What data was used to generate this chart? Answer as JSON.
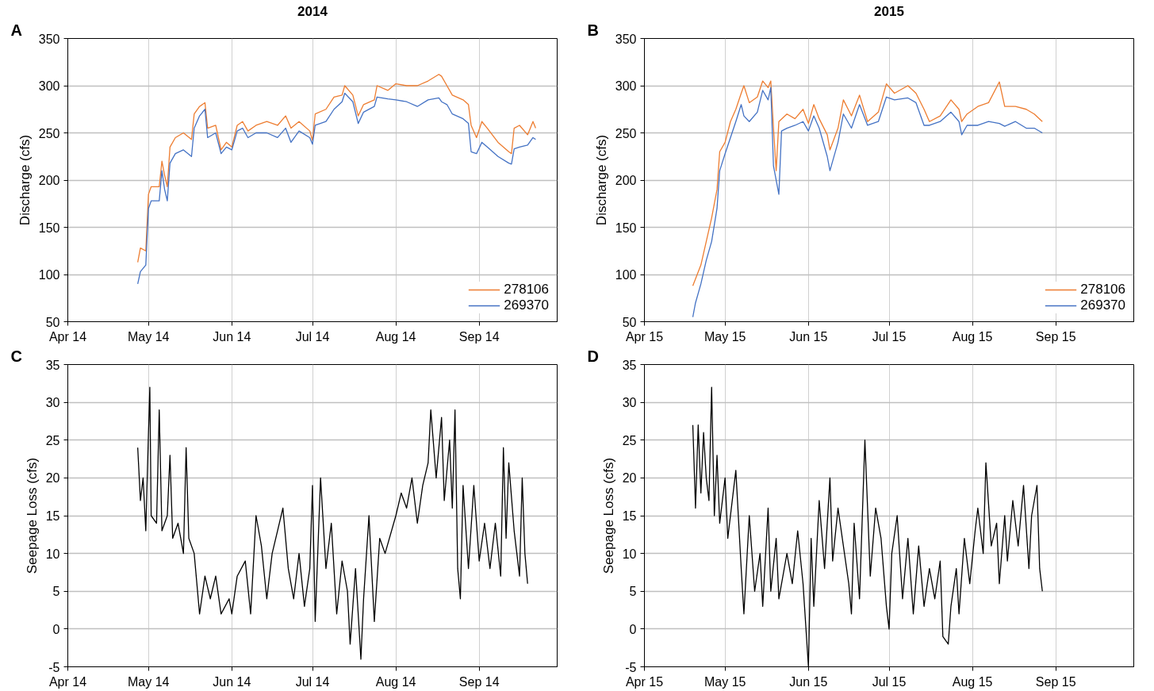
{
  "chart_data": [
    {
      "type": "line",
      "title": "2014",
      "ylabel": "Discharge (cfs)",
      "annotations": [
        "A"
      ],
      "xlim": [
        "2014-04-01",
        "2014-09-30"
      ],
      "xticks": [
        {
          "value": "2014-04-01",
          "label": "Apr 14"
        },
        {
          "value": "2014-05-01",
          "label": "May 14"
        },
        {
          "value": "2014-06-01",
          "label": "Jun 14"
        },
        {
          "value": "2014-07-01",
          "label": "Jul 14"
        },
        {
          "value": "2014-08-01",
          "label": "Aug 14"
        },
        {
          "value": "2014-09-01",
          "label": "Sep 14"
        }
      ],
      "ylim": [
        50,
        350
      ],
      "yticks": [
        50,
        100,
        150,
        200,
        250,
        300,
        350
      ],
      "grid": true,
      "legend": "bottom right",
      "series": [
        {
          "name": "278106",
          "color": "#ed7d31",
          "x": [
            "2014-04-27",
            "2014-04-28",
            "2014-04-30",
            "2014-05-01",
            "2014-05-02",
            "2014-05-05",
            "2014-05-06",
            "2014-05-07",
            "2014-05-08",
            "2014-05-09",
            "2014-05-11",
            "2014-05-14",
            "2014-05-17",
            "2014-05-18",
            "2014-05-20",
            "2014-05-22",
            "2014-05-23",
            "2014-05-26",
            "2014-05-28",
            "2014-05-30",
            "2014-06-01",
            "2014-06-03",
            "2014-06-05",
            "2014-06-07",
            "2014-06-10",
            "2014-06-14",
            "2014-06-18",
            "2014-06-21",
            "2014-06-23",
            "2014-06-26",
            "2014-06-30",
            "2014-07-01",
            "2014-07-02",
            "2014-07-06",
            "2014-07-09",
            "2014-07-12",
            "2014-07-13",
            "2014-07-16",
            "2014-07-18",
            "2014-07-20",
            "2014-07-24",
            "2014-07-25",
            "2014-07-29",
            "2014-08-01",
            "2014-08-05",
            "2014-08-09",
            "2014-08-13",
            "2014-08-17",
            "2014-08-18",
            "2014-08-20",
            "2014-08-22",
            "2014-08-26",
            "2014-08-28",
            "2014-08-29",
            "2014-08-31",
            "2014-09-02",
            "2014-09-04",
            "2014-09-08",
            "2014-09-12",
            "2014-09-13",
            "2014-09-14",
            "2014-09-16",
            "2014-09-19",
            "2014-09-21",
            "2014-09-22"
          ],
          "values": [
            113,
            128,
            125,
            185,
            193,
            193,
            220,
            205,
            193,
            235,
            245,
            250,
            243,
            270,
            278,
            282,
            255,
            258,
            232,
            240,
            235,
            258,
            262,
            252,
            258,
            262,
            258,
            268,
            255,
            262,
            252,
            242,
            270,
            275,
            288,
            290,
            300,
            290,
            268,
            280,
            285,
            300,
            295,
            302,
            300,
            300,
            305,
            312,
            310,
            300,
            290,
            285,
            280,
            258,
            245,
            262,
            255,
            240,
            230,
            228,
            255,
            258,
            248,
            262,
            255
          ]
        },
        {
          "name": "269370",
          "color": "#4472c4",
          "x": [
            "2014-04-27",
            "2014-04-28",
            "2014-04-30",
            "2014-05-01",
            "2014-05-02",
            "2014-05-05",
            "2014-05-06",
            "2014-05-07",
            "2014-05-08",
            "2014-05-09",
            "2014-05-11",
            "2014-05-14",
            "2014-05-17",
            "2014-05-18",
            "2014-05-20",
            "2014-05-22",
            "2014-05-23",
            "2014-05-26",
            "2014-05-28",
            "2014-05-30",
            "2014-06-01",
            "2014-06-03",
            "2014-06-05",
            "2014-06-07",
            "2014-06-10",
            "2014-06-14",
            "2014-06-18",
            "2014-06-21",
            "2014-06-23",
            "2014-06-26",
            "2014-06-30",
            "2014-07-01",
            "2014-07-02",
            "2014-07-06",
            "2014-07-09",
            "2014-07-12",
            "2014-07-13",
            "2014-07-16",
            "2014-07-18",
            "2014-07-20",
            "2014-07-24",
            "2014-07-25",
            "2014-07-29",
            "2014-08-01",
            "2014-08-05",
            "2014-08-09",
            "2014-08-13",
            "2014-08-17",
            "2014-08-18",
            "2014-08-20",
            "2014-08-22",
            "2014-08-26",
            "2014-08-28",
            "2014-08-29",
            "2014-08-31",
            "2014-09-02",
            "2014-09-04",
            "2014-09-08",
            "2014-09-12",
            "2014-09-13",
            "2014-09-14",
            "2014-09-16",
            "2014-09-19",
            "2014-09-21",
            "2014-09-22"
          ],
          "values": [
            90,
            103,
            110,
            170,
            178,
            178,
            210,
            190,
            178,
            218,
            228,
            232,
            225,
            255,
            268,
            275,
            245,
            250,
            228,
            235,
            232,
            252,
            255,
            245,
            250,
            250,
            245,
            255,
            240,
            252,
            245,
            238,
            258,
            262,
            275,
            283,
            292,
            283,
            260,
            272,
            278,
            288,
            286,
            285,
            283,
            278,
            285,
            287,
            283,
            280,
            270,
            265,
            260,
            230,
            228,
            240,
            235,
            225,
            218,
            217,
            233,
            235,
            237,
            245,
            243
          ]
        }
      ]
    },
    {
      "type": "line",
      "title": "2015",
      "ylabel": "Discharge (cfs)",
      "annotations": [
        "B"
      ],
      "xlim": [
        "2015-04-01",
        "2015-09-30"
      ],
      "xticks": [
        {
          "value": "2015-04-01",
          "label": "Apr 15"
        },
        {
          "value": "2015-05-01",
          "label": "May 15"
        },
        {
          "value": "2015-06-01",
          "label": "Jun 15"
        },
        {
          "value": "2015-07-01",
          "label": "Jul 15"
        },
        {
          "value": "2015-08-01",
          "label": "Aug 15"
        },
        {
          "value": "2015-09-01",
          "label": "Sep 15"
        }
      ],
      "ylim": [
        50,
        350
      ],
      "yticks": [
        50,
        100,
        150,
        200,
        250,
        300,
        350
      ],
      "grid": true,
      "legend": "bottom right",
      "series": [
        {
          "name": "278106",
          "color": "#ed7d31",
          "x": [
            "2015-04-19",
            "2015-04-22",
            "2015-04-24",
            "2015-04-26",
            "2015-04-28",
            "2015-04-29",
            "2015-05-01",
            "2015-05-03",
            "2015-05-05",
            "2015-05-07",
            "2015-05-08",
            "2015-05-10",
            "2015-05-13",
            "2015-05-15",
            "2015-05-17",
            "2015-05-18",
            "2015-05-19",
            "2015-05-20",
            "2015-05-21",
            "2015-05-24",
            "2015-05-27",
            "2015-05-30",
            "2015-06-01",
            "2015-06-03",
            "2015-06-05",
            "2015-06-08",
            "2015-06-09",
            "2015-06-12",
            "2015-06-14",
            "2015-06-17",
            "2015-06-20",
            "2015-06-23",
            "2015-06-27",
            "2015-06-30",
            "2015-07-03",
            "2015-07-08",
            "2015-07-11",
            "2015-07-14",
            "2015-07-16",
            "2015-07-20",
            "2015-07-24",
            "2015-07-27",
            "2015-07-28",
            "2015-07-30",
            "2015-08-03",
            "2015-08-07",
            "2015-08-11",
            "2015-08-13",
            "2015-08-17",
            "2015-08-21",
            "2015-08-24",
            "2015-08-27"
          ],
          "values": [
            88,
            110,
            135,
            160,
            190,
            230,
            240,
            262,
            275,
            292,
            300,
            282,
            288,
            305,
            298,
            305,
            255,
            210,
            262,
            270,
            265,
            275,
            260,
            280,
            265,
            248,
            232,
            255,
            285,
            268,
            290,
            262,
            272,
            302,
            292,
            300,
            292,
            275,
            262,
            268,
            285,
            275,
            262,
            270,
            278,
            282,
            304,
            278,
            278,
            275,
            270,
            262
          ]
        },
        {
          "name": "269370",
          "color": "#4472c4",
          "x": [
            "2015-04-19",
            "2015-04-20",
            "2015-04-22",
            "2015-04-24",
            "2015-04-26",
            "2015-04-28",
            "2015-04-29",
            "2015-05-01",
            "2015-05-03",
            "2015-05-05",
            "2015-05-07",
            "2015-05-08",
            "2015-05-10",
            "2015-05-13",
            "2015-05-15",
            "2015-05-17",
            "2015-05-18",
            "2015-05-19",
            "2015-05-21",
            "2015-05-22",
            "2015-05-24",
            "2015-05-27",
            "2015-05-30",
            "2015-06-01",
            "2015-06-03",
            "2015-06-05",
            "2015-06-08",
            "2015-06-09",
            "2015-06-12",
            "2015-06-14",
            "2015-06-17",
            "2015-06-20",
            "2015-06-23",
            "2015-06-27",
            "2015-06-30",
            "2015-07-03",
            "2015-07-08",
            "2015-07-11",
            "2015-07-14",
            "2015-07-16",
            "2015-07-20",
            "2015-07-24",
            "2015-07-27",
            "2015-07-28",
            "2015-07-30",
            "2015-08-03",
            "2015-08-07",
            "2015-08-11",
            "2015-08-13",
            "2015-08-17",
            "2015-08-21",
            "2015-08-24",
            "2015-08-27"
          ],
          "values": [
            55,
            70,
            90,
            115,
            135,
            170,
            210,
            228,
            245,
            262,
            280,
            268,
            262,
            272,
            295,
            285,
            298,
            215,
            185,
            252,
            255,
            258,
            262,
            252,
            268,
            255,
            225,
            210,
            240,
            270,
            255,
            280,
            258,
            262,
            288,
            285,
            287,
            282,
            258,
            258,
            262,
            272,
            262,
            248,
            258,
            258,
            262,
            260,
            257,
            262,
            255,
            255,
            250
          ]
        }
      ]
    },
    {
      "type": "line",
      "ylabel": "Seepage Loss (cfs)",
      "annotations": [
        "C"
      ],
      "xlim": [
        "2014-04-01",
        "2014-09-30"
      ],
      "xticks": [
        {
          "value": "2014-04-01",
          "label": "Apr 14"
        },
        {
          "value": "2014-05-01",
          "label": "May 14"
        },
        {
          "value": "2014-06-01",
          "label": "Jun 14"
        },
        {
          "value": "2014-07-01",
          "label": "Jul 14"
        },
        {
          "value": "2014-08-01",
          "label": "Aug 14"
        },
        {
          "value": "2014-09-01",
          "label": "Sep 14"
        }
      ],
      "ylim": [
        -5,
        35
      ],
      "yticks": [
        -5,
        0,
        5,
        10,
        15,
        20,
        25,
        30,
        35
      ],
      "grid": true,
      "series": [
        {
          "color": "#000000",
          "x": [
            "2014-04-27",
            "2014-04-28",
            "2014-04-29",
            "2014-04-30",
            "2014-05-01",
            "2014-05-01T12:00",
            "2014-05-02",
            "2014-05-04",
            "2014-05-05",
            "2014-05-06",
            "2014-05-08",
            "2014-05-09",
            "2014-05-10",
            "2014-05-12",
            "2014-05-14",
            "2014-05-15",
            "2014-05-16",
            "2014-05-18",
            "2014-05-19",
            "2014-05-20",
            "2014-05-22",
            "2014-05-24",
            "2014-05-26",
            "2014-05-28",
            "2014-05-31",
            "2014-06-01",
            "2014-06-03",
            "2014-06-06",
            "2014-06-08",
            "2014-06-10",
            "2014-06-12",
            "2014-06-14",
            "2014-06-16",
            "2014-06-18",
            "2014-06-20",
            "2014-06-22",
            "2014-06-24",
            "2014-06-26",
            "2014-06-28",
            "2014-06-30",
            "2014-07-01",
            "2014-07-02",
            "2014-07-04",
            "2014-07-06",
            "2014-07-08",
            "2014-07-10",
            "2014-07-12",
            "2014-07-14",
            "2014-07-15",
            "2014-07-17",
            "2014-07-19",
            "2014-07-20",
            "2014-07-22",
            "2014-07-24",
            "2014-07-26",
            "2014-07-28",
            "2014-08-01",
            "2014-08-03",
            "2014-08-05",
            "2014-08-07",
            "2014-08-09",
            "2014-08-11",
            "2014-08-13",
            "2014-08-14",
            "2014-08-16",
            "2014-08-18",
            "2014-08-19",
            "2014-08-21",
            "2014-08-22",
            "2014-08-23",
            "2014-08-24",
            "2014-08-25",
            "2014-08-26",
            "2014-08-28",
            "2014-08-30",
            "2014-09-01",
            "2014-09-03",
            "2014-09-05",
            "2014-09-07",
            "2014-09-09",
            "2014-09-10",
            "2014-09-11",
            "2014-09-12",
            "2014-09-14",
            "2014-09-16",
            "2014-09-17",
            "2014-09-18",
            "2014-09-19"
          ],
          "values": [
            24,
            17,
            20,
            13,
            26,
            32,
            15,
            14,
            29,
            13,
            15,
            23,
            12,
            14,
            10,
            24,
            12,
            10,
            6,
            2,
            7,
            4,
            7,
            2,
            4,
            2,
            7,
            9,
            2,
            15,
            11,
            4,
            10,
            13,
            16,
            8,
            4,
            10,
            3,
            8,
            19,
            1,
            20,
            8,
            14,
            2,
            9,
            5,
            -2,
            8,
            -4,
            4,
            15,
            1,
            12,
            10,
            15,
            18,
            16,
            20,
            14,
            19,
            22,
            29,
            20,
            28,
            17,
            25,
            16,
            29,
            8,
            4,
            19,
            8,
            19,
            9,
            14,
            8,
            14,
            7,
            24,
            12,
            22,
            13,
            7,
            20,
            10,
            6
          ]
        }
      ]
    },
    {
      "type": "line",
      "ylabel": "Seepage Loss (cfs)",
      "annotations": [
        "D"
      ],
      "xlim": [
        "2015-04-01",
        "2015-09-30"
      ],
      "xticks": [
        {
          "value": "2015-04-01",
          "label": "Apr 15"
        },
        {
          "value": "2015-05-01",
          "label": "May 15"
        },
        {
          "value": "2015-06-01",
          "label": "Jun 15"
        },
        {
          "value": "2015-07-01",
          "label": "Jul 15"
        },
        {
          "value": "2015-08-01",
          "label": "Aug 15"
        },
        {
          "value": "2015-09-01",
          "label": "Sep 15"
        }
      ],
      "ylim": [
        -5,
        35
      ],
      "yticks": [
        -5,
        0,
        5,
        10,
        15,
        20,
        25,
        30,
        35
      ],
      "grid": true,
      "series": [
        {
          "color": "#000000",
          "x": [
            "2015-04-19",
            "2015-04-20",
            "2015-04-21",
            "2015-04-22",
            "2015-04-23",
            "2015-04-24",
            "2015-04-25",
            "2015-04-26",
            "2015-04-27",
            "2015-04-28",
            "2015-04-29",
            "2015-05-01",
            "2015-05-02",
            "2015-05-04",
            "2015-05-05",
            "2015-05-07",
            "2015-05-08",
            "2015-05-10",
            "2015-05-12",
            "2015-05-14",
            "2015-05-15",
            "2015-05-17",
            "2015-05-18",
            "2015-05-20",
            "2015-05-21",
            "2015-05-24",
            "2015-05-26",
            "2015-05-28",
            "2015-05-30",
            "2015-06-01",
            "2015-06-02",
            "2015-06-03",
            "2015-06-05",
            "2015-06-07",
            "2015-06-09",
            "2015-06-10",
            "2015-06-12",
            "2015-06-14",
            "2015-06-16",
            "2015-06-17",
            "2015-06-18",
            "2015-06-20",
            "2015-06-22",
            "2015-06-24",
            "2015-06-26",
            "2015-06-28",
            "2015-06-30",
            "2015-07-01",
            "2015-07-02",
            "2015-07-04",
            "2015-07-06",
            "2015-07-08",
            "2015-07-10",
            "2015-07-12",
            "2015-07-14",
            "2015-07-16",
            "2015-07-18",
            "2015-07-20",
            "2015-07-21",
            "2015-07-23",
            "2015-07-24",
            "2015-07-26",
            "2015-07-27",
            "2015-07-29",
            "2015-07-31",
            "2015-08-02",
            "2015-08-03",
            "2015-08-05",
            "2015-08-06",
            "2015-08-08",
            "2015-08-10",
            "2015-08-11",
            "2015-08-13",
            "2015-08-14",
            "2015-08-16",
            "2015-08-18",
            "2015-08-20",
            "2015-08-22",
            "2015-08-23",
            "2015-08-25",
            "2015-08-26",
            "2015-08-27"
          ],
          "values": [
            27,
            16,
            27,
            18,
            26,
            20,
            17,
            32,
            15,
            23,
            14,
            20,
            12,
            18,
            21,
            8,
            2,
            15,
            5,
            10,
            3,
            16,
            5,
            12,
            4,
            10,
            6,
            13,
            6,
            -5,
            12,
            3,
            17,
            8,
            20,
            9,
            16,
            11,
            6,
            2,
            14,
            4,
            25,
            7,
            16,
            12,
            3,
            0,
            10,
            15,
            4,
            12,
            2,
            11,
            3,
            8,
            4,
            9,
            -1,
            -2,
            3,
            8,
            2,
            12,
            6,
            13,
            16,
            10,
            22,
            11,
            14,
            6,
            15,
            9,
            17,
            11,
            19,
            8,
            15,
            19,
            8,
            5
          ]
        }
      ]
    }
  ]
}
